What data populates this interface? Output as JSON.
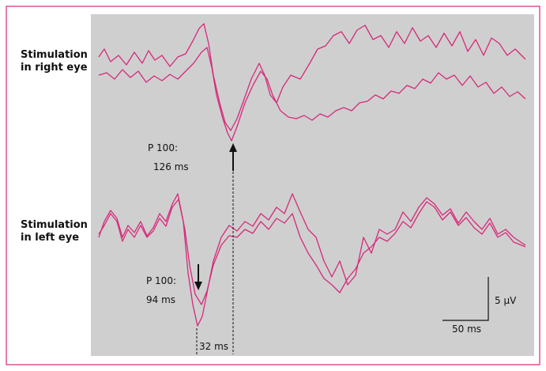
{
  "right_eye": {
    "label_lines": [
      "Stimulation",
      "in right eye"
    ],
    "peak_label": [
      "P 100:",
      "126 ms"
    ]
  },
  "left_eye": {
    "label_lines": [
      "Stimulation",
      "in left eye"
    ],
    "peak_label": [
      "P 100:",
      "94 ms"
    ]
  },
  "latency_difference": "32 ms",
  "scale": {
    "voltage": "5 µV",
    "time": "50 ms"
  }
}
